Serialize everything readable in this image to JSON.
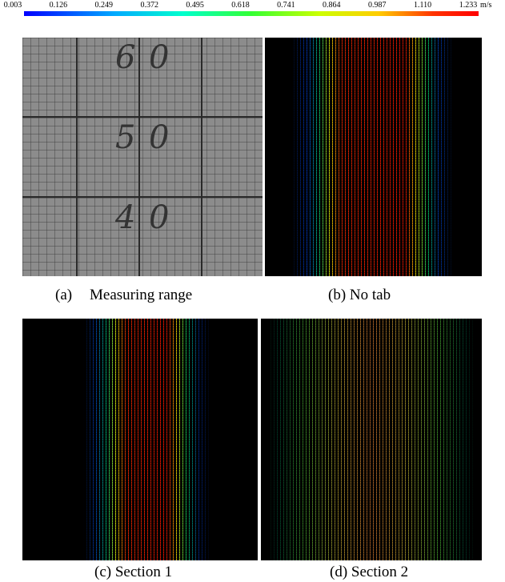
{
  "colorbar": {
    "ticks": [
      "0.003",
      "0.126",
      "0.249",
      "0.372",
      "0.495",
      "0.618",
      "0.741",
      "0.864",
      "0.987",
      "1.110",
      "1.233"
    ],
    "unit": "m/s"
  },
  "panels": [
    {
      "label": "(a)",
      "caption": "Measuring range",
      "digits": [
        [
          "6",
          "0"
        ],
        [
          "5",
          "0"
        ],
        [
          "4",
          "0"
        ]
      ]
    },
    {
      "caption": "(b) No tab"
    },
    {
      "caption": "(c) Section 1"
    },
    {
      "caption": "(d) Section 2"
    }
  ]
}
